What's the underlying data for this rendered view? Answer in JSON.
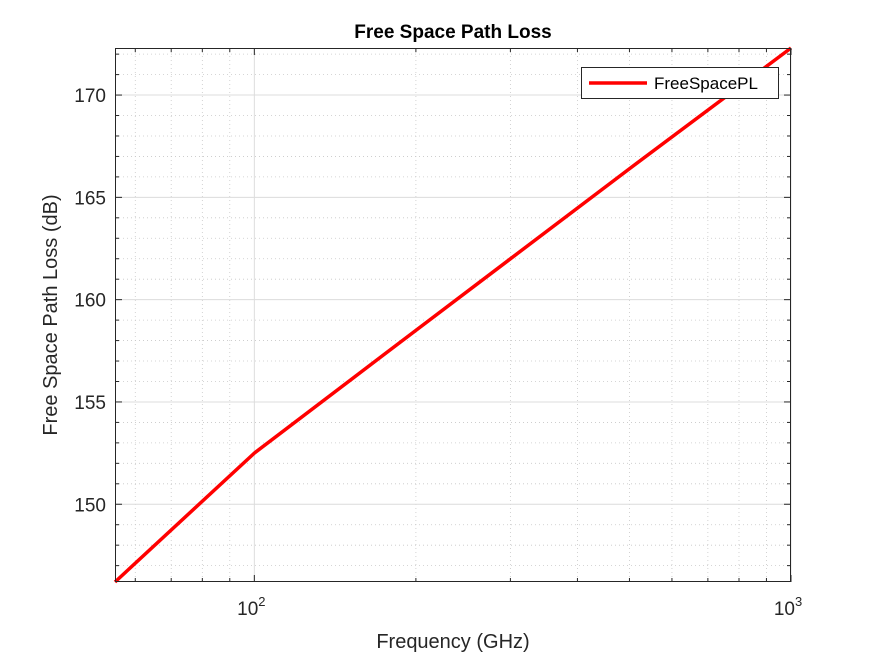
{
  "chart_data": {
    "type": "line",
    "title": "Free Space Path Loss",
    "xlabel": "Frequency (GHz)",
    "ylabel": "Free Space Path Loss (dB)",
    "x_scale": "log",
    "xlim": [
      55,
      1000
    ],
    "ylim": [
      146.2,
      172.3
    ],
    "x_ticks": [
      {
        "value": 100,
        "base": "10",
        "exp": "2"
      },
      {
        "value": 1000,
        "base": "10",
        "exp": "3"
      }
    ],
    "y_ticks": [
      150,
      155,
      160,
      165,
      170
    ],
    "grid": true,
    "minor_grid": true,
    "legend_position": "top-right",
    "series": [
      {
        "name": "FreeSpacePL",
        "color": "#ff0000",
        "x": [
          55,
          100,
          200,
          500,
          1000
        ],
        "y": [
          146.2,
          152.5,
          158.5,
          166.4,
          172.3
        ]
      }
    ]
  }
}
